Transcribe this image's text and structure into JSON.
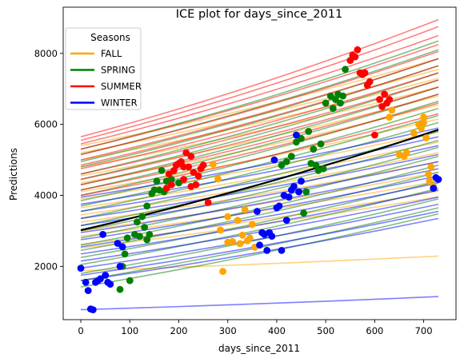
{
  "chart_data": {
    "type": "line",
    "title": "ICE plot for days_since_2011",
    "xlabel": "days_since_2011",
    "ylabel": "Predictions",
    "xlim": [
      -36,
      766
    ],
    "ylim": [
      500,
      9300
    ],
    "xticks": [
      0,
      100,
      200,
      300,
      400,
      500,
      600,
      700
    ],
    "yticks": [
      2000,
      4000,
      6000,
      8000
    ],
    "grid": false,
    "legend": {
      "title": "Seasons",
      "placement": "top-left",
      "entries": [
        {
          "label": "FALL",
          "color": "#ffa500"
        },
        {
          "label": "SPRING",
          "color": "#008000"
        },
        {
          "label": "SUMMER",
          "color": "#ff0000"
        },
        {
          "label": "WINTER",
          "color": "#0000ff"
        }
      ]
    },
    "x_range": [
      0,
      730
    ],
    "average_line": {
      "color": "#000000",
      "start": 3020,
      "end": 5850
    },
    "ice_lines": {
      "FALL": [
        [
          1880,
          2290
        ],
        [
          2520,
          3960
        ],
        [
          2620,
          4120
        ],
        [
          2850,
          4400
        ],
        [
          3000,
          4650
        ],
        [
          3250,
          4950
        ],
        [
          3450,
          5200
        ],
        [
          3650,
          5500
        ],
        [
          3900,
          5800
        ],
        [
          4100,
          6150
        ],
        [
          4350,
          6550
        ],
        [
          4550,
          6800
        ],
        [
          4800,
          7050
        ],
        [
          5000,
          7300
        ],
        [
          5200,
          7550
        ],
        [
          5400,
          7850
        ]
      ],
      "SPRING": [
        [
          1420,
          3480
        ],
        [
          1600,
          3650
        ],
        [
          1800,
          3900
        ],
        [
          2050,
          4200
        ],
        [
          2250,
          4400
        ],
        [
          2450,
          4650
        ],
        [
          2600,
          4850
        ],
        [
          2800,
          5100
        ],
        [
          3000,
          5350
        ],
        [
          3150,
          5550
        ],
        [
          3350,
          5800
        ],
        [
          3550,
          6050
        ],
        [
          3700,
          6250
        ],
        [
          3850,
          6450
        ],
        [
          4000,
          6650
        ],
        [
          4150,
          6850
        ],
        [
          4300,
          7050
        ],
        [
          4450,
          7250
        ],
        [
          4600,
          7450
        ],
        [
          4800,
          7650
        ],
        [
          4950,
          7850
        ],
        [
          5150,
          8100
        ],
        [
          5300,
          8350
        ]
      ],
      "SUMMER": [
        [
          4000,
          6300
        ],
        [
          4150,
          6600
        ],
        [
          4300,
          6850
        ],
        [
          4450,
          7050
        ],
        [
          4600,
          7250
        ],
        [
          4750,
          7450
        ],
        [
          4850,
          7650
        ],
        [
          5000,
          7850
        ],
        [
          5150,
          8050
        ],
        [
          5300,
          8250
        ],
        [
          5450,
          8500
        ],
        [
          5550,
          8750
        ],
        [
          5650,
          8950
        ]
      ],
      "WINTER": [
        [
          780,
          1150
        ],
        [
          1600,
          3350
        ],
        [
          1750,
          3550
        ],
        [
          1950,
          3750
        ],
        [
          2150,
          3950
        ],
        [
          2350,
          4150
        ],
        [
          2550,
          4350
        ],
        [
          2750,
          4550
        ],
        [
          2950,
          4750
        ],
        [
          3150,
          4950
        ],
        [
          3350,
          5150
        ],
        [
          3550,
          5400
        ],
        [
          3750,
          5650
        ],
        [
          3950,
          5900
        ]
      ]
    },
    "points": {
      "FALL": [
        [
          290,
          1860
        ],
        [
          285,
          3020
        ],
        [
          300,
          2680
        ],
        [
          310,
          2700
        ],
        [
          320,
          3300
        ],
        [
          325,
          2640
        ],
        [
          330,
          2880
        ],
        [
          335,
          3600
        ],
        [
          340,
          2720
        ],
        [
          345,
          2800
        ],
        [
          350,
          3180
        ],
        [
          355,
          2540
        ],
        [
          300,
          3400
        ],
        [
          270,
          4880
        ],
        [
          280,
          4460
        ],
        [
          630,
          6200
        ],
        [
          635,
          6400
        ],
        [
          650,
          5150
        ],
        [
          660,
          5100
        ],
        [
          665,
          5200
        ],
        [
          680,
          5750
        ],
        [
          690,
          6000
        ],
        [
          695,
          5900
        ],
        [
          700,
          6050
        ],
        [
          705,
          5620
        ],
        [
          710,
          4600
        ],
        [
          712,
          4400
        ],
        [
          715,
          4800
        ],
        [
          720,
          4250
        ],
        [
          700,
          6200
        ]
      ],
      "SPRING": [
        [
          80,
          1350
        ],
        [
          85,
          2000
        ],
        [
          90,
          2350
        ],
        [
          95,
          2800
        ],
        [
          110,
          2900
        ],
        [
          115,
          3250
        ],
        [
          120,
          2850
        ],
        [
          125,
          3400
        ],
        [
          130,
          3100
        ],
        [
          135,
          3700
        ],
        [
          135,
          2750
        ],
        [
          140,
          2900
        ],
        [
          145,
          4050
        ],
        [
          150,
          4150
        ],
        [
          155,
          4400
        ],
        [
          160,
          4150
        ],
        [
          165,
          4700
        ],
        [
          170,
          4100
        ],
        [
          175,
          4400
        ],
        [
          185,
          4450
        ],
        [
          195,
          4850
        ],
        [
          200,
          4350
        ],
        [
          410,
          4850
        ],
        [
          420,
          4950
        ],
        [
          430,
          5100
        ],
        [
          440,
          5500
        ],
        [
          445,
          4100
        ],
        [
          450,
          5600
        ],
        [
          455,
          3500
        ],
        [
          460,
          4100
        ],
        [
          465,
          5800
        ],
        [
          470,
          4900
        ],
        [
          475,
          5300
        ],
        [
          480,
          4850
        ],
        [
          485,
          4700
        ],
        [
          490,
          5450
        ],
        [
          495,
          4750
        ],
        [
          500,
          6600
        ],
        [
          510,
          6800
        ],
        [
          515,
          6450
        ],
        [
          520,
          6700
        ],
        [
          525,
          6850
        ],
        [
          530,
          6600
        ],
        [
          535,
          6800
        ],
        [
          540,
          7550
        ],
        [
          100,
          1600
        ]
      ],
      "SUMMER": [
        [
          175,
          4200
        ],
        [
          180,
          4600
        ],
        [
          185,
          4300
        ],
        [
          190,
          4700
        ],
        [
          195,
          4850
        ],
        [
          200,
          4900
        ],
        [
          205,
          4950
        ],
        [
          210,
          4800
        ],
        [
          215,
          5200
        ],
        [
          220,
          4800
        ],
        [
          225,
          5100
        ],
        [
          230,
          4650
        ],
        [
          235,
          4300
        ],
        [
          240,
          4550
        ],
        [
          245,
          4750
        ],
        [
          250,
          4850
        ],
        [
          260,
          3800
        ],
        [
          550,
          7800
        ],
        [
          555,
          7950
        ],
        [
          560,
          7900
        ],
        [
          565,
          8100
        ],
        [
          570,
          7450
        ],
        [
          575,
          7400
        ],
        [
          580,
          7450
        ],
        [
          585,
          7100
        ],
        [
          590,
          7200
        ],
        [
          600,
          5700
        ],
        [
          610,
          6700
        ],
        [
          615,
          6500
        ],
        [
          620,
          6850
        ],
        [
          625,
          6600
        ],
        [
          630,
          6700
        ],
        [
          210,
          4450
        ],
        [
          225,
          4250
        ]
      ],
      "WINTER": [
        [
          0,
          1950
        ],
        [
          10,
          1550
        ],
        [
          15,
          1320
        ],
        [
          20,
          800
        ],
        [
          25,
          780
        ],
        [
          30,
          1550
        ],
        [
          35,
          1600
        ],
        [
          40,
          1650
        ],
        [
          45,
          2900
        ],
        [
          50,
          1750
        ],
        [
          55,
          1550
        ],
        [
          60,
          1500
        ],
        [
          75,
          2650
        ],
        [
          80,
          2000
        ],
        [
          85,
          2550
        ],
        [
          360,
          3550
        ],
        [
          365,
          2600
        ],
        [
          370,
          2950
        ],
        [
          375,
          2900
        ],
        [
          380,
          2450
        ],
        [
          385,
          2950
        ],
        [
          390,
          2850
        ],
        [
          395,
          5000
        ],
        [
          400,
          3650
        ],
        [
          405,
          3700
        ],
        [
          410,
          2450
        ],
        [
          415,
          4000
        ],
        [
          420,
          3300
        ],
        [
          425,
          3950
        ],
        [
          430,
          4150
        ],
        [
          435,
          4250
        ],
        [
          440,
          5700
        ],
        [
          445,
          4100
        ],
        [
          450,
          4400
        ],
        [
          720,
          4200
        ],
        [
          725,
          4500
        ],
        [
          730,
          4450
        ]
      ]
    }
  }
}
